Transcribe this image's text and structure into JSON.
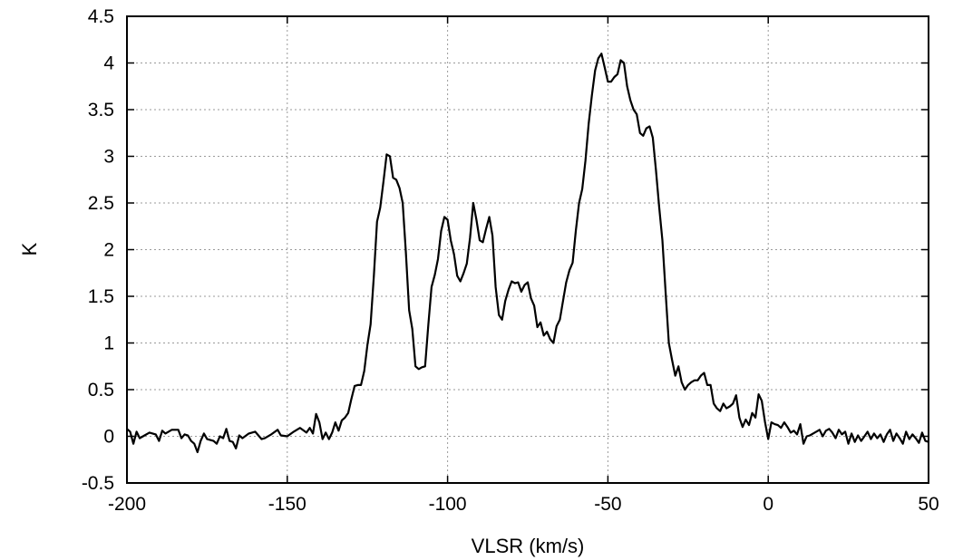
{
  "chart_data": {
    "type": "line",
    "xlabel": "VLSR (km/s)",
    "ylabel": "K",
    "xlim": [
      -200,
      50
    ],
    "ylim": [
      -0.5,
      4.5
    ],
    "xticks": [
      -200,
      -150,
      -100,
      -50,
      0,
      50
    ],
    "yticks": [
      -0.5,
      0,
      0.5,
      1,
      1.5,
      2,
      2.5,
      3,
      3.5,
      4,
      4.5
    ],
    "grid": true,
    "series": [
      {
        "points": [
          [
            -200,
            0.08
          ],
          [
            -199,
            0.05
          ],
          [
            -198,
            -0.08
          ],
          [
            -197,
            0.05
          ],
          [
            -196,
            -0.02
          ],
          [
            -195,
            0.0
          ],
          [
            -193,
            0.04
          ],
          [
            -191,
            0.02
          ],
          [
            -190,
            -0.05
          ],
          [
            -189,
            0.06
          ],
          [
            -188,
            0.03
          ],
          [
            -186,
            0.07
          ],
          [
            -184,
            0.07
          ],
          [
            -183,
            -0.02
          ],
          [
            -182,
            0.02
          ],
          [
            -181,
            0.01
          ],
          [
            -180,
            -0.05
          ],
          [
            -179,
            -0.08
          ],
          [
            -178,
            -0.17
          ],
          [
            -177,
            -0.05
          ],
          [
            -176,
            0.03
          ],
          [
            -175,
            -0.03
          ],
          [
            -173,
            -0.05
          ],
          [
            -172,
            -0.08
          ],
          [
            -171,
            0.0
          ],
          [
            -170,
            -0.02
          ],
          [
            -169,
            0.08
          ],
          [
            -168,
            -0.05
          ],
          [
            -167,
            -0.06
          ],
          [
            -166,
            -0.13
          ],
          [
            -165,
            0.01
          ],
          [
            -164,
            -0.02
          ],
          [
            -162,
            0.03
          ],
          [
            -160,
            0.05
          ],
          [
            -158,
            -0.03
          ],
          [
            -157,
            -0.02
          ],
          [
            -155,
            0.02
          ],
          [
            -153,
            0.07
          ],
          [
            -152,
            0.01
          ],
          [
            -150,
            0.0
          ],
          [
            -148,
            0.05
          ],
          [
            -146,
            0.09
          ],
          [
            -144,
            0.04
          ],
          [
            -143,
            0.09
          ],
          [
            -142,
            0.03
          ],
          [
            -141,
            0.24
          ],
          [
            -140,
            0.15
          ],
          [
            -139,
            -0.03
          ],
          [
            -138,
            0.04
          ],
          [
            -137,
            -0.03
          ],
          [
            -136,
            0.04
          ],
          [
            -135,
            0.15
          ],
          [
            -134,
            0.06
          ],
          [
            -133,
            0.17
          ],
          [
            -132,
            0.2
          ],
          [
            -131,
            0.25
          ],
          [
            -130,
            0.4
          ],
          [
            -129,
            0.54
          ],
          [
            -128,
            0.55
          ],
          [
            -127,
            0.55
          ],
          [
            -126,
            0.7
          ],
          [
            -125,
            0.98
          ],
          [
            -124,
            1.2
          ],
          [
            -123,
            1.72
          ],
          [
            -122,
            2.3
          ],
          [
            -121,
            2.45
          ],
          [
            -120,
            2.73
          ],
          [
            -119,
            3.02
          ],
          [
            -118,
            3.0
          ],
          [
            -117,
            2.77
          ],
          [
            -116,
            2.75
          ],
          [
            -115,
            2.66
          ],
          [
            -114,
            2.5
          ],
          [
            -113,
            1.97
          ],
          [
            -112,
            1.35
          ],
          [
            -111,
            1.15
          ],
          [
            -110,
            0.75
          ],
          [
            -109,
            0.72
          ],
          [
            -108,
            0.74
          ],
          [
            -107,
            0.75
          ],
          [
            -106,
            1.2
          ],
          [
            -105,
            1.6
          ],
          [
            -104,
            1.73
          ],
          [
            -103,
            1.9
          ],
          [
            -102,
            2.2
          ],
          [
            -101,
            2.35
          ],
          [
            -100,
            2.32
          ],
          [
            -99,
            2.1
          ],
          [
            -98,
            1.95
          ],
          [
            -97,
            1.72
          ],
          [
            -96,
            1.66
          ],
          [
            -95,
            1.75
          ],
          [
            -94,
            1.85
          ],
          [
            -93,
            2.13
          ],
          [
            -92,
            2.5
          ],
          [
            -91,
            2.32
          ],
          [
            -90,
            2.1
          ],
          [
            -89,
            2.08
          ],
          [
            -88,
            2.22
          ],
          [
            -87,
            2.35
          ],
          [
            -86,
            2.15
          ],
          [
            -85,
            1.6
          ],
          [
            -84,
            1.3
          ],
          [
            -83,
            1.25
          ],
          [
            -82,
            1.45
          ],
          [
            -81,
            1.57
          ],
          [
            -80,
            1.66
          ],
          [
            -79,
            1.64
          ],
          [
            -78,
            1.65
          ],
          [
            -77,
            1.55
          ],
          [
            -76,
            1.62
          ],
          [
            -75,
            1.65
          ],
          [
            -74,
            1.48
          ],
          [
            -73,
            1.4
          ],
          [
            -72,
            1.17
          ],
          [
            -71,
            1.22
          ],
          [
            -70,
            1.08
          ],
          [
            -69,
            1.12
          ],
          [
            -68,
            1.04
          ],
          [
            -67,
            1.0
          ],
          [
            -66,
            1.18
          ],
          [
            -65,
            1.25
          ],
          [
            -64,
            1.45
          ],
          [
            -63,
            1.65
          ],
          [
            -62,
            1.78
          ],
          [
            -61,
            1.86
          ],
          [
            -60,
            2.2
          ],
          [
            -59,
            2.5
          ],
          [
            -58,
            2.65
          ],
          [
            -57,
            2.95
          ],
          [
            -56,
            3.35
          ],
          [
            -55,
            3.65
          ],
          [
            -54,
            3.92
          ],
          [
            -53,
            4.05
          ],
          [
            -52,
            4.1
          ],
          [
            -51,
            3.95
          ],
          [
            -50,
            3.8
          ],
          [
            -49,
            3.8
          ],
          [
            -48,
            3.85
          ],
          [
            -47,
            3.88
          ],
          [
            -46,
            4.03
          ],
          [
            -45,
            4.0
          ],
          [
            -44,
            3.75
          ],
          [
            -43,
            3.6
          ],
          [
            -42,
            3.5
          ],
          [
            -41,
            3.45
          ],
          [
            -40,
            3.25
          ],
          [
            -39,
            3.22
          ],
          [
            -38,
            3.3
          ],
          [
            -37,
            3.32
          ],
          [
            -36,
            3.2
          ],
          [
            -35,
            2.85
          ],
          [
            -34,
            2.45
          ],
          [
            -33,
            2.1
          ],
          [
            -32,
            1.55
          ],
          [
            -31,
            1.0
          ],
          [
            -30,
            0.82
          ],
          [
            -29,
            0.65
          ],
          [
            -28,
            0.75
          ],
          [
            -27,
            0.58
          ],
          [
            -26,
            0.5
          ],
          [
            -25,
            0.55
          ],
          [
            -24,
            0.58
          ],
          [
            -23,
            0.6
          ],
          [
            -22,
            0.6
          ],
          [
            -21,
            0.65
          ],
          [
            -20,
            0.68
          ],
          [
            -19,
            0.55
          ],
          [
            -18,
            0.55
          ],
          [
            -17,
            0.35
          ],
          [
            -16,
            0.3
          ],
          [
            -15,
            0.27
          ],
          [
            -14,
            0.35
          ],
          [
            -13,
            0.3
          ],
          [
            -12,
            0.32
          ],
          [
            -11,
            0.35
          ],
          [
            -10,
            0.44
          ],
          [
            -9,
            0.2
          ],
          [
            -8,
            0.1
          ],
          [
            -7,
            0.18
          ],
          [
            -6,
            0.12
          ],
          [
            -5,
            0.25
          ],
          [
            -4,
            0.2
          ],
          [
            -3,
            0.45
          ],
          [
            -2,
            0.38
          ],
          [
            -1,
            0.15
          ],
          [
            0,
            -0.03
          ],
          [
            1,
            0.15
          ],
          [
            2,
            0.13
          ],
          [
            3,
            0.12
          ],
          [
            4,
            0.09
          ],
          [
            5,
            0.15
          ],
          [
            6,
            0.1
          ],
          [
            7,
            0.04
          ],
          [
            8,
            0.06
          ],
          [
            9,
            0.02
          ],
          [
            10,
            0.13
          ],
          [
            11,
            -0.08
          ],
          [
            12,
            0.0
          ],
          [
            13,
            0.01
          ],
          [
            14,
            0.03
          ],
          [
            15,
            0.05
          ],
          [
            16,
            0.07
          ],
          [
            17,
            0.0
          ],
          [
            18,
            0.06
          ],
          [
            19,
            0.08
          ],
          [
            20,
            0.04
          ],
          [
            21,
            -0.02
          ],
          [
            22,
            0.07
          ],
          [
            23,
            0.02
          ],
          [
            24,
            0.05
          ],
          [
            25,
            -0.08
          ],
          [
            26,
            0.03
          ],
          [
            27,
            -0.06
          ],
          [
            28,
            0.01
          ],
          [
            29,
            -0.05
          ],
          [
            30,
            0.0
          ],
          [
            31,
            0.05
          ],
          [
            32,
            -0.03
          ],
          [
            33,
            0.03
          ],
          [
            34,
            -0.02
          ],
          [
            35,
            0.02
          ],
          [
            36,
            -0.06
          ],
          [
            37,
            0.02
          ],
          [
            38,
            0.07
          ],
          [
            39,
            -0.05
          ],
          [
            40,
            0.03
          ],
          [
            41,
            -0.02
          ],
          [
            42,
            -0.08
          ],
          [
            43,
            0.05
          ],
          [
            44,
            -0.03
          ],
          [
            45,
            0.02
          ],
          [
            46,
            -0.02
          ],
          [
            47,
            -0.07
          ],
          [
            48,
            0.04
          ],
          [
            49,
            -0.05
          ],
          [
            50,
            -0.06
          ]
        ]
      }
    ]
  }
}
